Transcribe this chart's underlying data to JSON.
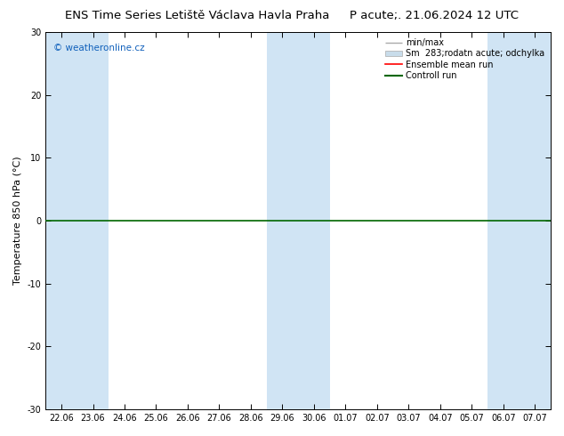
{
  "title": "ENS Time Series Letiště Václava Havla Praha",
  "title2": "P acute;. 21.06.2024 12 UTC",
  "ylabel": "Temperature 850 hPa (°C)",
  "ylim": [
    -30,
    30
  ],
  "yticks": [
    -30,
    -20,
    -10,
    0,
    10,
    20,
    30
  ],
  "x_labels": [
    "22.06",
    "23.06",
    "24.06",
    "25.06",
    "26.06",
    "27.06",
    "28.06",
    "29.06",
    "30.06",
    "01.07",
    "02.07",
    "03.07",
    "04.07",
    "05.07",
    "06.07",
    "07.07"
  ],
  "watermark": "© weatheronline.cz",
  "bg_color": "#ffffff",
  "band_color": "#d0e4f4",
  "band_indices": [
    0,
    1,
    7,
    8,
    14,
    15
  ],
  "zero_line_color": "#006600",
  "title_fontsize": 9.5,
  "tick_fontsize": 7,
  "ylabel_fontsize": 8,
  "legend_label_fontsize": 7,
  "minmax_color": "#aaaaaa",
  "odchylka_color": "#c8dcea",
  "ensemble_color": "#ff0000",
  "control_color": "#006600"
}
